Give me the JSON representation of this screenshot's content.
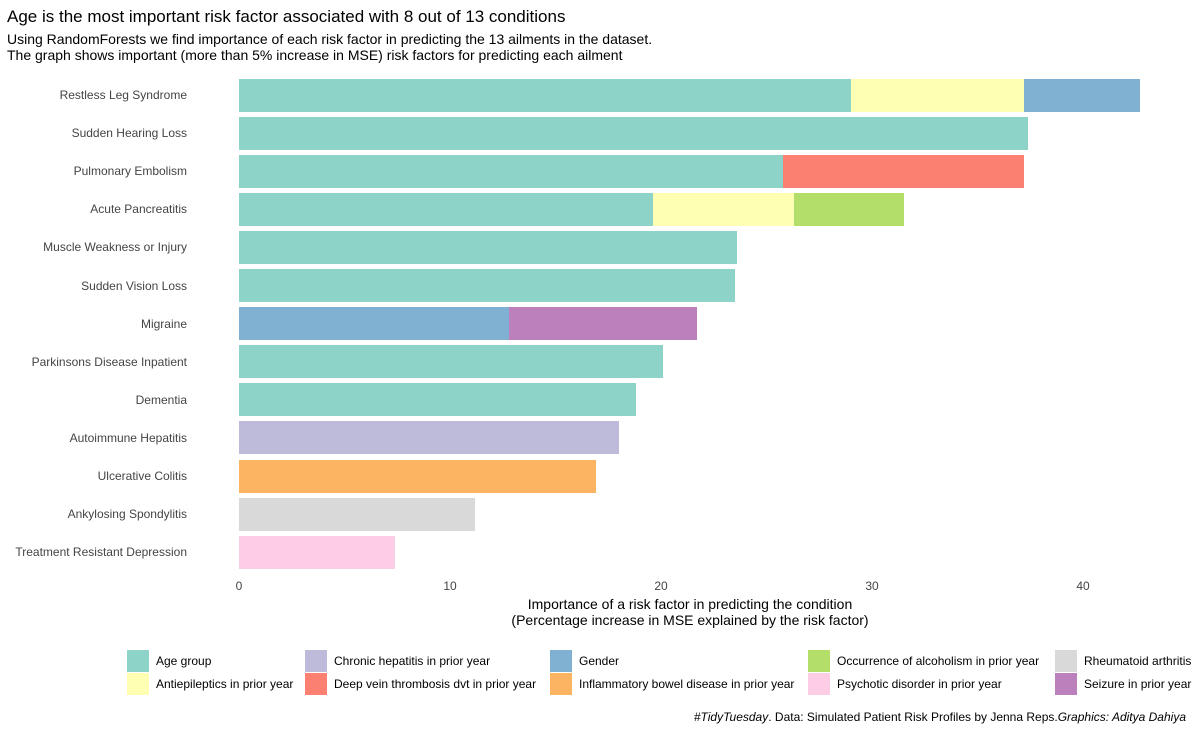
{
  "title": "Age is the most important risk factor associated with 8 out of 13 conditions",
  "subtitle_lines": [
    "Using RandomForests we find importance of each risk factor in predicting the 13 ailments in the dataset.",
    "The graph shows important (more than 5% increase in MSE) risk factors for predicting each ailment"
  ],
  "caption": {
    "tag": "#TidyTuesday",
    "data": ". Data: Simulated Patient Risk Profiles by Jenna Reps.",
    "graphics": "Graphics: Aditya Dahiya"
  },
  "chart_data": {
    "type": "bar",
    "orientation": "horizontal",
    "stacked": true,
    "xlabel_lines": [
      "Importance of a risk factor in predicting the condition",
      "(Percentage increase in MSE explained by the risk factor)"
    ],
    "xlim": [
      0,
      43
    ],
    "xticks": [
      0,
      10,
      20,
      30,
      40
    ],
    "grid": false,
    "legend_position": "bottom",
    "categories": [
      "Restless Leg Syndrome",
      "Sudden Hearing Loss",
      "Pulmonary Embolism",
      "Acute Pancreatitis",
      "Muscle Weakness or Injury",
      "Sudden Vision Loss",
      "Migraine",
      "Parkinsons Disease Inpatient",
      "Dementia",
      "Autoimmune Hepatitis",
      "Ulcerative Colitis",
      "Ankylosing Spondylitis",
      "Treatment Resistant Depression"
    ],
    "factors": [
      {
        "name": "Age group",
        "color": "#8DD3C7"
      },
      {
        "name": "Chronic hepatitis in prior year",
        "color": "#BEBADA"
      },
      {
        "name": "Gender",
        "color": "#80B1D3"
      },
      {
        "name": "Occurrence of alcoholism in prior year",
        "color": "#B3DE69"
      },
      {
        "name": "Rheumatoid arthritis",
        "color": "#D9D9D9"
      },
      {
        "name": "Antiepileptics in prior year",
        "color": "#FFFFB3"
      },
      {
        "name": "Deep vein thrombosis dvt in prior year",
        "color": "#FB8072"
      },
      {
        "name": "Inflammatory bowel disease in prior year",
        "color": "#FDB462"
      },
      {
        "name": "Psychotic disorder in prior year",
        "color": "#FCCDE5"
      },
      {
        "name": "Seizure in prior year",
        "color": "#BC80BD"
      }
    ],
    "bars": [
      [
        {
          "factor": "Age group",
          "value": 29.0
        },
        {
          "factor": "Antiepileptics in prior year",
          "value": 8.2
        },
        {
          "factor": "Gender",
          "value": 5.5
        }
      ],
      [
        {
          "factor": "Age group",
          "value": 37.4
        }
      ],
      [
        {
          "factor": "Age group",
          "value": 25.8
        },
        {
          "factor": "Deep vein thrombosis dvt in prior year",
          "value": 11.4
        }
      ],
      [
        {
          "factor": "Age group",
          "value": 19.6
        },
        {
          "factor": "Antiepileptics in prior year",
          "value": 6.7
        },
        {
          "factor": "Occurrence of alcoholism in prior year",
          "value": 5.2
        }
      ],
      [
        {
          "factor": "Age group",
          "value": 23.6
        }
      ],
      [
        {
          "factor": "Age group",
          "value": 23.5
        }
      ],
      [
        {
          "factor": "Gender",
          "value": 12.8
        },
        {
          "factor": "Seizure in prior year",
          "value": 8.9
        }
      ],
      [
        {
          "factor": "Age group",
          "value": 20.1
        }
      ],
      [
        {
          "factor": "Age group",
          "value": 18.8
        }
      ],
      [
        {
          "factor": "Chronic hepatitis in prior year",
          "value": 18.0
        }
      ],
      [
        {
          "factor": "Inflammatory bowel disease in prior year",
          "value": 16.9
        }
      ],
      [
        {
          "factor": "Rheumatoid arthritis",
          "value": 11.2
        }
      ],
      [
        {
          "factor": "Psychotic disorder in prior year",
          "value": 7.4
        }
      ]
    ]
  }
}
